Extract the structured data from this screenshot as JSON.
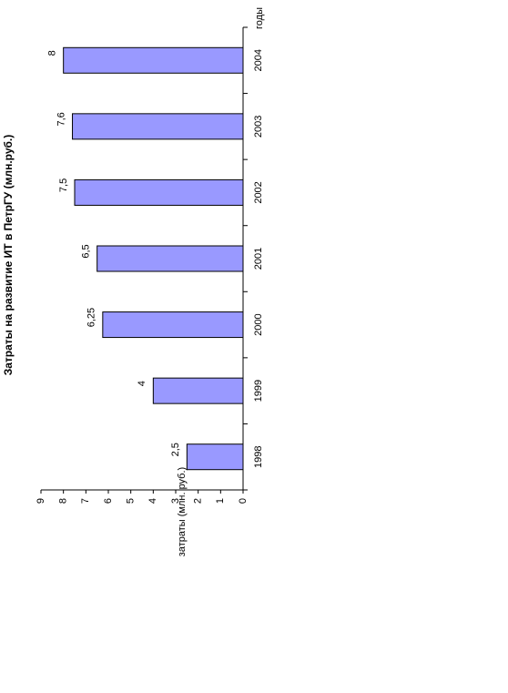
{
  "chart_data": {
    "type": "bar",
    "orientation": "rotated",
    "title": "Затраты на развитие ИТ в ПетрГУ (млн.руб.)",
    "x_label": "годы",
    "y_label": "затраты (млн. руб.)",
    "categories": [
      "1998",
      "1999",
      "2000",
      "2001",
      "2002",
      "2003",
      "2004"
    ],
    "values": [
      2.5,
      4,
      6.25,
      6.5,
      7.5,
      7.6,
      8
    ],
    "value_labels": [
      "2,5",
      "4",
      "6,25",
      "6,5",
      "7,5",
      "7,6",
      "8"
    ],
    "color": "#9999ff",
    "ylim": [
      0,
      9
    ],
    "yticks": [
      0,
      1,
      2,
      3,
      4,
      5,
      6,
      7,
      8,
      9
    ]
  }
}
